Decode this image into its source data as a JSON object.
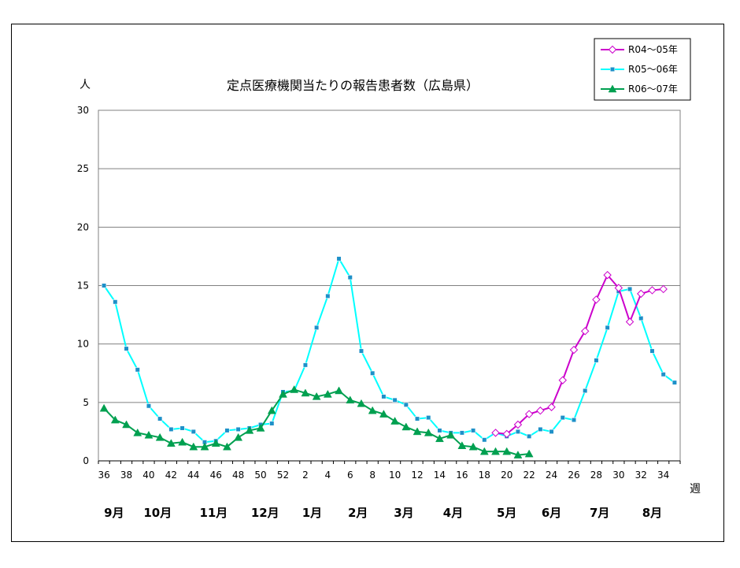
{
  "chart_data": {
    "type": "line",
    "title": "定点医療機関当たりの報告患者数（広島県）",
    "ylabel": "人",
    "xlabel": "週",
    "ylim": [
      0,
      30
    ],
    "yticks": [
      0,
      5,
      10,
      15,
      20,
      25,
      30
    ],
    "grid": true,
    "legend_position": "top-right",
    "x_ticks": [
      "36",
      "38",
      "40",
      "42",
      "44",
      "46",
      "48",
      "50",
      "52",
      "2",
      "4",
      "6",
      "8",
      "10",
      "12",
      "14",
      "16",
      "18",
      "20",
      "22",
      "24",
      "26",
      "28",
      "30",
      "32",
      "34"
    ],
    "months": [
      "9月",
      "10月",
      "11月",
      "12月",
      "1月",
      "2月",
      "3月",
      "4月",
      "5月",
      "6月",
      "7月",
      "8月"
    ],
    "series": [
      {
        "name": "R04～05年",
        "color": "#cc00cc",
        "marker": "diamond",
        "start_index": 35,
        "values": [
          2.4,
          2.3,
          3.1,
          4.0,
          4.3,
          4.6,
          6.9,
          9.5,
          11.1,
          13.8,
          15.9,
          14.8,
          11.9,
          14.3,
          14.6,
          14.7
        ]
      },
      {
        "name": "R05～06年",
        "color": "#00ffff",
        "marker": "square",
        "start_index": 0,
        "values": [
          15.0,
          13.6,
          9.6,
          7.8,
          4.7,
          3.6,
          2.7,
          2.8,
          2.5,
          1.6,
          1.7,
          2.6,
          2.7,
          2.8,
          3.1,
          3.2,
          5.9,
          6.0,
          8.2,
          11.4,
          14.1,
          17.3,
          15.7,
          9.4,
          7.5,
          5.5,
          5.2,
          4.8,
          3.6,
          3.7,
          2.6,
          2.4,
          2.4,
          2.6,
          1.8,
          2.4,
          2.1,
          2.5,
          2.1,
          2.7,
          2.5,
          3.7,
          3.5,
          6.0,
          8.6,
          11.4,
          14.5,
          14.7,
          12.2,
          9.4,
          7.4,
          6.7
        ]
      },
      {
        "name": "R06～07年",
        "color": "#00a050",
        "marker": "triangle",
        "start_index": 0,
        "values": [
          4.5,
          3.5,
          3.1,
          2.4,
          2.2,
          2.0,
          1.5,
          1.6,
          1.2,
          1.2,
          1.5,
          1.2,
          2.0,
          2.6,
          2.8,
          4.3,
          5.7,
          6.1,
          5.8,
          5.5,
          5.7,
          6.0,
          5.2,
          4.9,
          4.3,
          4.0,
          3.4,
          2.9,
          2.5,
          2.4,
          1.9,
          2.2,
          1.3,
          1.2,
          0.8,
          0.8,
          0.8,
          0.5,
          0.6
        ]
      }
    ]
  }
}
